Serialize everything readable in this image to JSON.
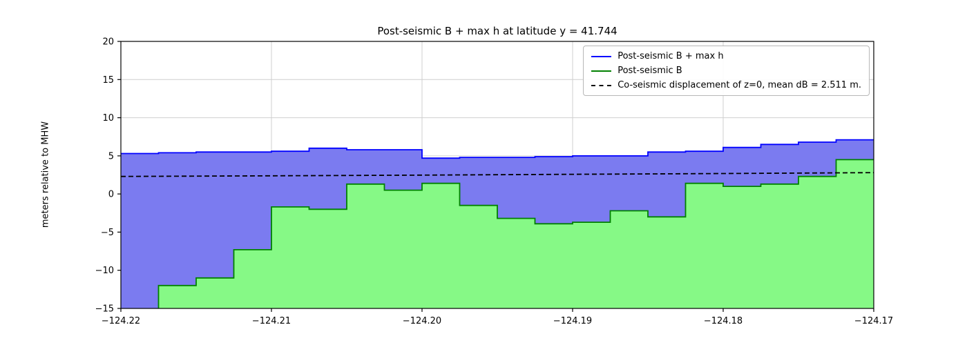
{
  "chart_data": {
    "type": "area",
    "title": "Post-seismic B + max h at latitude y = 41.744",
    "ylabel": "meters relative to MHW",
    "xlim": [
      -124.22,
      -124.17
    ],
    "ylim": [
      -15,
      20
    ],
    "x_start": -124.22,
    "x_step": 0.0025,
    "grid": true,
    "x_ticks": {
      "values": [
        -124.22,
        -124.21,
        -124.2,
        -124.19,
        -124.18,
        -124.17
      ],
      "labels": [
        "−124.22",
        "−124.21",
        "−124.20",
        "−124.19",
        "−124.18",
        "−124.17"
      ]
    },
    "y_ticks": {
      "values": [
        -15,
        -10,
        -5,
        0,
        5,
        10,
        15,
        20
      ],
      "labels": [
        "−15",
        "−10",
        "−5",
        "0",
        "5",
        "10",
        "15",
        "20"
      ]
    },
    "series": [
      {
        "name": "Post-seismic B + max h",
        "line_color": "#0000ff",
        "fill_color": "#7b7bf0",
        "values": [
          5.3,
          5.4,
          5.5,
          5.5,
          5.6,
          6.0,
          5.8,
          5.8,
          4.7,
          4.8,
          4.8,
          4.9,
          5.0,
          5.0,
          5.5,
          5.6,
          6.1,
          6.5,
          6.8,
          7.1
        ]
      },
      {
        "name": "Post-seismic B",
        "line_color": "#008000",
        "fill_color": "#86f986",
        "values": [
          -16,
          -12,
          -11,
          -7.3,
          -1.7,
          -2.0,
          1.3,
          0.5,
          1.4,
          -1.5,
          -3.2,
          -3.9,
          -3.7,
          -2.2,
          -3.0,
          1.4,
          1.0,
          1.3,
          2.3,
          4.5
        ]
      }
    ],
    "dashed_line": {
      "label": "Co-seismic displacement of z=0, mean dB = 2.511 m.",
      "color": "#000000",
      "x": [
        -124.22,
        -124.21,
        -124.2,
        -124.19,
        -124.18,
        -124.17
      ],
      "y": [
        2.3,
        2.38,
        2.47,
        2.58,
        2.68,
        2.8
      ]
    },
    "legend": [
      {
        "label": "Post-seismic B + max h",
        "color": "#0000ff",
        "dash": false
      },
      {
        "label": "Post-seismic B",
        "color": "#008000",
        "dash": false
      },
      {
        "label": "Co-seismic displacement of z=0, mean dB = 2.511 m.",
        "color": "#000000",
        "dash": true
      }
    ],
    "grid_color": "#cfcfcf"
  }
}
